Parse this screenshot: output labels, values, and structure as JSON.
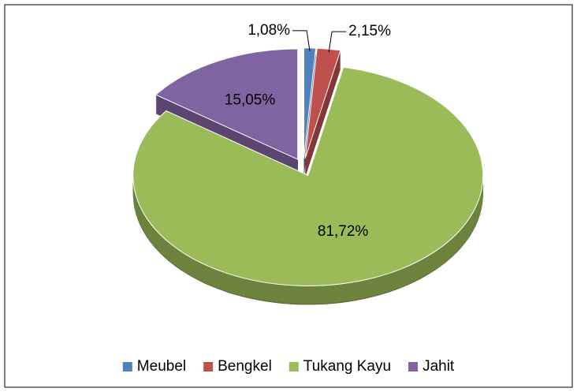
{
  "chart_data": {
    "type": "pie",
    "categories": [
      "Meubel",
      "Bengkel",
      "Tukang Kayu",
      "Jahit"
    ],
    "values": [
      1.08,
      2.15,
      81.72,
      15.05
    ],
    "value_labels": [
      "1,08%",
      "2,15%",
      "81,72%",
      "15,05%"
    ],
    "colors": [
      "#4f81bd",
      "#c0504d",
      "#9bbb59",
      "#8064a2"
    ],
    "legend": "bottom"
  }
}
